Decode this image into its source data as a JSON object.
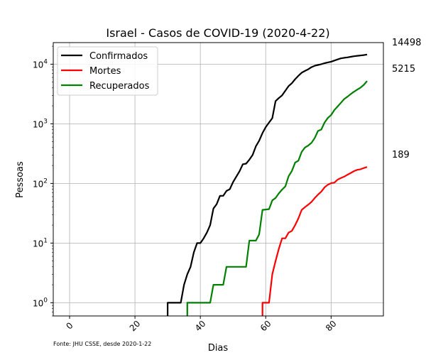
{
  "chart_data": {
    "type": "line",
    "title": "Israel - Casos de COVID-19 (2020-4-22)",
    "xlabel": "Dias",
    "ylabel": "Pessoas",
    "source_note": "Fonte: JHU CSSE, desde 2020-1-22",
    "y_scale": "log",
    "xlim": [
      -5,
      96
    ],
    "ylim": [
      0.6,
      23000
    ],
    "grid": true,
    "legend_position": "top-left",
    "x_ticks": [
      0,
      20,
      40,
      60,
      80
    ],
    "x_tick_labels": [
      "0",
      "20",
      "40",
      "60",
      "80"
    ],
    "y_ticks": [
      1,
      10,
      100,
      1000,
      10000
    ],
    "y_tick_labels": [
      "10^0",
      "10^1",
      "10^2",
      "10^3",
      "10^4"
    ],
    "series": [
      {
        "name": "Confirmados",
        "color": "#000000",
        "end_label": "14498",
        "points": [
          [
            30,
            0.6
          ],
          [
            30,
            1
          ],
          [
            34,
            1
          ],
          [
            35,
            2
          ],
          [
            36,
            3
          ],
          [
            37,
            4
          ],
          [
            38,
            7
          ],
          [
            39,
            10
          ],
          [
            40,
            10
          ],
          [
            41,
            12
          ],
          [
            42,
            15
          ],
          [
            43,
            20
          ],
          [
            44,
            38
          ],
          [
            45,
            45
          ],
          [
            46,
            62
          ],
          [
            47,
            62
          ],
          [
            48,
            75
          ],
          [
            49,
            80
          ],
          [
            50,
            105
          ],
          [
            51,
            130
          ],
          [
            52,
            160
          ],
          [
            53,
            210
          ],
          [
            54,
            215
          ],
          [
            55,
            250
          ],
          [
            56,
            300
          ],
          [
            57,
            420
          ],
          [
            58,
            520
          ],
          [
            59,
            700
          ],
          [
            60,
            880
          ],
          [
            61,
            1050
          ],
          [
            62,
            1240
          ],
          [
            63,
            2400
          ],
          [
            64,
            2700
          ],
          [
            65,
            3000
          ],
          [
            66,
            3600
          ],
          [
            67,
            4300
          ],
          [
            68,
            4800
          ],
          [
            69,
            5600
          ],
          [
            70,
            6400
          ],
          [
            71,
            7200
          ],
          [
            72,
            7700
          ],
          [
            73,
            8200
          ],
          [
            74,
            8900
          ],
          [
            75,
            9400
          ],
          [
            76,
            9700
          ],
          [
            77,
            10000
          ],
          [
            78,
            10400
          ],
          [
            79,
            10700
          ],
          [
            80,
            11000
          ],
          [
            81,
            11500
          ],
          [
            82,
            12000
          ],
          [
            83,
            12500
          ],
          [
            84,
            12800
          ],
          [
            85,
            13000
          ],
          [
            86,
            13300
          ],
          [
            87,
            13600
          ],
          [
            88,
            13800
          ],
          [
            89,
            14000
          ],
          [
            90,
            14200
          ],
          [
            91,
            14498
          ]
        ]
      },
      {
        "name": "Mortes",
        "color": "#ff0000",
        "end_label": "189",
        "points": [
          [
            59,
            0.6
          ],
          [
            59,
            1
          ],
          [
            61,
            1
          ],
          [
            62,
            3
          ],
          [
            63,
            5
          ],
          [
            64,
            8
          ],
          [
            65,
            12
          ],
          [
            66,
            12
          ],
          [
            67,
            15
          ],
          [
            68,
            16
          ],
          [
            69,
            20
          ],
          [
            70,
            26
          ],
          [
            71,
            36
          ],
          [
            72,
            40
          ],
          [
            73,
            44
          ],
          [
            74,
            49
          ],
          [
            75,
            57
          ],
          [
            76,
            65
          ],
          [
            77,
            73
          ],
          [
            78,
            86
          ],
          [
            79,
            95
          ],
          [
            80,
            101
          ],
          [
            81,
            103
          ],
          [
            82,
            116
          ],
          [
            83,
            123
          ],
          [
            84,
            130
          ],
          [
            85,
            140
          ],
          [
            86,
            150
          ],
          [
            87,
            161
          ],
          [
            88,
            169
          ],
          [
            89,
            173
          ],
          [
            90,
            181
          ],
          [
            91,
            189
          ]
        ]
      },
      {
        "name": "Recuperados",
        "color": "#008000",
        "end_label": "5215",
        "points": [
          [
            36,
            0.6
          ],
          [
            36,
            1
          ],
          [
            43,
            1
          ],
          [
            44,
            2
          ],
          [
            47,
            2
          ],
          [
            48,
            4
          ],
          [
            54,
            4
          ],
          [
            55,
            11
          ],
          [
            57,
            11
          ],
          [
            58,
            14
          ],
          [
            59,
            36
          ],
          [
            61,
            37
          ],
          [
            62,
            52
          ],
          [
            63,
            57
          ],
          [
            64,
            68
          ],
          [
            65,
            79
          ],
          [
            66,
            89
          ],
          [
            67,
            132
          ],
          [
            68,
            162
          ],
          [
            69,
            224
          ],
          [
            70,
            241
          ],
          [
            71,
            338
          ],
          [
            72,
            400
          ],
          [
            73,
            432
          ],
          [
            74,
            480
          ],
          [
            75,
            580
          ],
          [
            76,
            760
          ],
          [
            77,
            800
          ],
          [
            78,
            1050
          ],
          [
            79,
            1250
          ],
          [
            80,
            1400
          ],
          [
            81,
            1700
          ],
          [
            82,
            1950
          ],
          [
            83,
            2250
          ],
          [
            84,
            2600
          ],
          [
            85,
            2850
          ],
          [
            86,
            3150
          ],
          [
            87,
            3450
          ],
          [
            88,
            3750
          ],
          [
            89,
            4050
          ],
          [
            90,
            4500
          ],
          [
            91,
            5215
          ]
        ]
      }
    ]
  }
}
